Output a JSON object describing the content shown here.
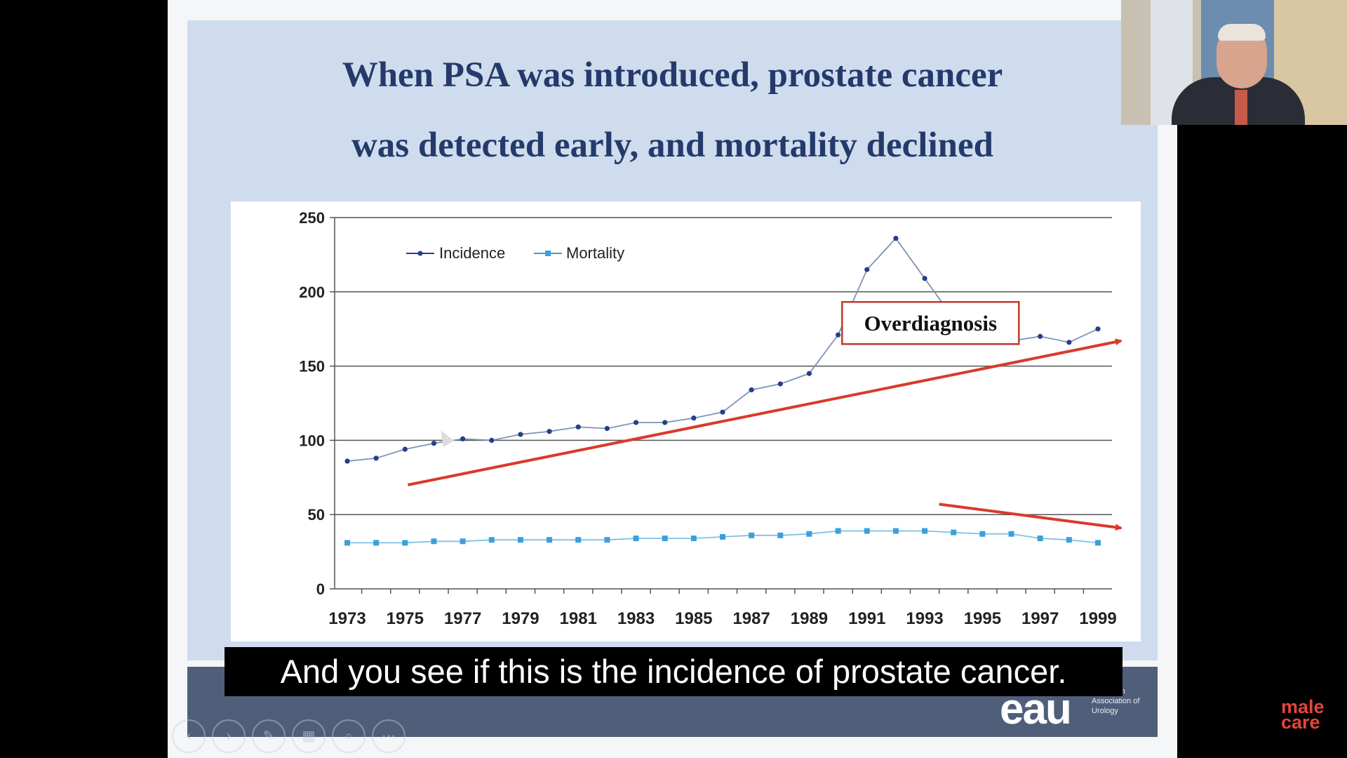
{
  "slide": {
    "title_line1": "When PSA was introduced, prostate cancer",
    "title_line2": "was detected early, and mortality declined",
    "logo_text": "eau",
    "logo_subtext": "European Association of Urology"
  },
  "subtitle": "And you see if this is the incidence of prostate cancer.",
  "brand": {
    "line1": "male",
    "line2": "care"
  },
  "colors": {
    "incidence": "#243f8c",
    "mortality": "#3aa0dc",
    "annotation_red": "#d93a2b",
    "title": "#243a6b",
    "slide_bg": "#cfdcee"
  },
  "controls": [
    {
      "name": "previous-slide-icon",
      "glyph": "‹"
    },
    {
      "name": "next-slide-icon",
      "glyph": "›"
    },
    {
      "name": "pen-icon",
      "glyph": "✎"
    },
    {
      "name": "slides-grid-icon",
      "glyph": "▦"
    },
    {
      "name": "zoom-icon",
      "glyph": "⌕"
    },
    {
      "name": "more-options-icon",
      "glyph": "⋯"
    }
  ],
  "chart_data": {
    "type": "line",
    "title": "",
    "xlabel": "",
    "ylabel": "",
    "x": [
      1973,
      1974,
      1975,
      1976,
      1977,
      1978,
      1979,
      1980,
      1981,
      1982,
      1983,
      1984,
      1985,
      1986,
      1987,
      1988,
      1989,
      1990,
      1991,
      1992,
      1993,
      1994,
      1995,
      1996,
      1997,
      1998,
      1999
    ],
    "x_tick_labels": [
      "1973",
      "1975",
      "1977",
      "1979",
      "1981",
      "1983",
      "1985",
      "1987",
      "1989",
      "1991",
      "1993",
      "1995",
      "1997",
      "1999"
    ],
    "ylim": [
      0,
      250
    ],
    "y_ticks": [
      0,
      50,
      100,
      150,
      200,
      250
    ],
    "grid": true,
    "legend_position": "top-left",
    "series": [
      {
        "name": "Incidence",
        "values": [
          86,
          88,
          94,
          98,
          101,
          100,
          104,
          106,
          109,
          108,
          112,
          112,
          115,
          119,
          134,
          138,
          145,
          171,
          215,
          236,
          209,
          182,
          167,
          167,
          170,
          166,
          175
        ]
      },
      {
        "name": "Mortality",
        "values": [
          31,
          31,
          31,
          32,
          32,
          33,
          33,
          33,
          33,
          33,
          34,
          34,
          34,
          35,
          36,
          36,
          37,
          39,
          39,
          39,
          39,
          38,
          37,
          37,
          34,
          33,
          31
        ]
      }
    ],
    "annotations": [
      {
        "type": "box",
        "text": "Overdiagnosis",
        "x": 1993.2,
        "y": 179
      },
      {
        "type": "arrow",
        "from": [
          1975.1,
          70
        ],
        "to": [
          1999.8,
          167
        ]
      },
      {
        "type": "arrow",
        "from": [
          1993.5,
          57
        ],
        "to": [
          1999.8,
          41
        ]
      }
    ]
  }
}
